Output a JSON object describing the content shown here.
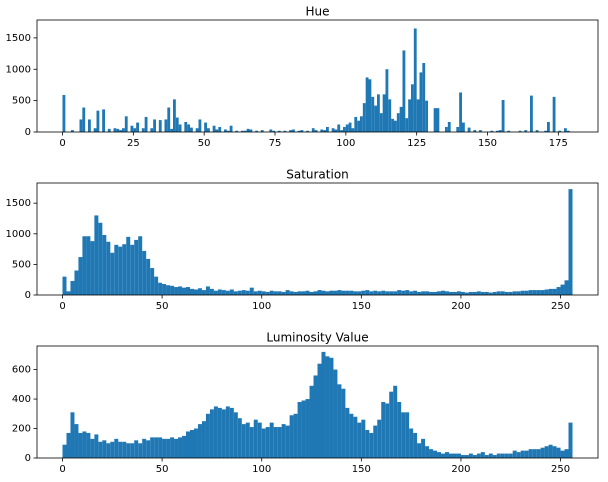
{
  "chart_data": [
    {
      "type": "histogram",
      "title": "Hue",
      "color": "#1f77b4",
      "bins": [
        0,
        1,
        2,
        3,
        4,
        5,
        6,
        7,
        8,
        9,
        10,
        11,
        12,
        13,
        14,
        15,
        16,
        17,
        18,
        19,
        20,
        21,
        22,
        23,
        24,
        25,
        26,
        27,
        28,
        29,
        30,
        31,
        32,
        33,
        34,
        35,
        36,
        37,
        38,
        39,
        40,
        41,
        42,
        43,
        44,
        45,
        46,
        47,
        48,
        49,
        50,
        51,
        52,
        53,
        54,
        55,
        56,
        57,
        58,
        59,
        60,
        61,
        62,
        63,
        64,
        65,
        66,
        67,
        68,
        69,
        70,
        71,
        72,
        73,
        74,
        75,
        76,
        77,
        78,
        79,
        80,
        81,
        82,
        83,
        84,
        85,
        86,
        87,
        88,
        89,
        90,
        91,
        92,
        93,
        94,
        95,
        96,
        97,
        98,
        99,
        100,
        101,
        102,
        103,
        104,
        105,
        106,
        107,
        108,
        109,
        110,
        111,
        112,
        113,
        114,
        115,
        116,
        117,
        118,
        119,
        120,
        121,
        122,
        123,
        124,
        125,
        126,
        127,
        128,
        129,
        130,
        131,
        132,
        133,
        134,
        135,
        136,
        137,
        138,
        139,
        140,
        141,
        142,
        143,
        144,
        145,
        146,
        147,
        148,
        149,
        150,
        151,
        152,
        153,
        154,
        155,
        156,
        157,
        158,
        159,
        160,
        161,
        162,
        163,
        164,
        165,
        166,
        167,
        168,
        169,
        170,
        171,
        172,
        173,
        174,
        175,
        176,
        177,
        178,
        179,
        180
      ],
      "values": [
        590,
        0,
        0,
        30,
        0,
        0,
        200,
        390,
        0,
        200,
        0,
        60,
        340,
        0,
        360,
        0,
        50,
        0,
        60,
        50,
        30,
        60,
        250,
        0,
        100,
        60,
        150,
        0,
        60,
        240,
        0,
        60,
        200,
        0,
        190,
        0,
        200,
        390,
        50,
        520,
        230,
        120,
        0,
        160,
        120,
        70,
        0,
        60,
        200,
        0,
        150,
        60,
        0,
        100,
        40,
        80,
        0,
        40,
        20,
        100,
        0,
        20,
        0,
        20,
        20,
        50,
        40,
        0,
        20,
        0,
        30,
        0,
        0,
        40,
        20,
        0,
        20,
        0,
        20,
        0,
        30,
        40,
        0,
        20,
        30,
        0,
        20,
        0,
        60,
        30,
        0,
        40,
        30,
        80,
        0,
        60,
        40,
        120,
        30,
        80,
        120,
        150,
        60,
        240,
        180,
        250,
        460,
        870,
        840,
        560,
        420,
        600,
        300,
        600,
        1000,
        520,
        210,
        180,
        300,
        400,
        1300,
        220,
        520,
        760,
        1650,
        520,
        950,
        1100,
        500,
        0,
        0,
        380,
        380,
        0,
        0,
        80,
        160,
        0,
        0,
        80,
        630,
        150,
        0,
        70,
        0,
        30,
        0,
        30,
        0,
        0,
        0,
        20,
        0,
        20,
        30,
        510,
        0,
        20,
        0,
        0,
        0,
        20,
        0,
        30,
        0,
        580,
        0,
        30,
        0,
        0,
        20,
        160,
        0,
        560,
        0,
        20,
        0,
        60,
        20,
        0
      ],
      "xlim": [
        -9,
        189
      ],
      "xticks": [
        0,
        25,
        50,
        75,
        100,
        125,
        150,
        175
      ],
      "ylim": [
        0,
        1785
      ],
      "yticks": [
        0,
        500,
        1000,
        1500
      ]
    },
    {
      "type": "histogram",
      "title": "Saturation",
      "color": "#1f77b4",
      "bins": [
        0,
        2,
        4,
        6,
        8,
        10,
        12,
        14,
        16,
        18,
        20,
        22,
        24,
        26,
        28,
        30,
        32,
        34,
        36,
        38,
        40,
        42,
        44,
        46,
        48,
        50,
        52,
        54,
        56,
        58,
        60,
        62,
        64,
        66,
        68,
        70,
        72,
        74,
        76,
        78,
        80,
        82,
        84,
        86,
        88,
        90,
        92,
        94,
        96,
        98,
        100,
        102,
        104,
        106,
        108,
        110,
        112,
        114,
        116,
        118,
        120,
        122,
        124,
        126,
        128,
        130,
        132,
        134,
        136,
        138,
        140,
        142,
        144,
        146,
        148,
        150,
        152,
        154,
        156,
        158,
        160,
        162,
        164,
        166,
        168,
        170,
        172,
        174,
        176,
        178,
        180,
        182,
        184,
        186,
        188,
        190,
        192,
        194,
        196,
        198,
        200,
        202,
        204,
        206,
        208,
        210,
        212,
        214,
        216,
        218,
        220,
        222,
        224,
        226,
        228,
        230,
        232,
        234,
        236,
        238,
        240,
        242,
        244,
        246,
        248,
        250,
        252,
        254,
        256
      ],
      "values": [
        300,
        60,
        230,
        400,
        620,
        960,
        960,
        880,
        1300,
        1180,
        980,
        870,
        690,
        820,
        790,
        830,
        950,
        820,
        900,
        960,
        720,
        590,
        440,
        300,
        200,
        180,
        160,
        150,
        130,
        140,
        120,
        130,
        100,
        90,
        110,
        80,
        140,
        100,
        70,
        90,
        80,
        70,
        90,
        60,
        70,
        80,
        70,
        120,
        60,
        70,
        60,
        50,
        70,
        60,
        60,
        50,
        80,
        60,
        50,
        60,
        60,
        70,
        50,
        60,
        80,
        70,
        60,
        70,
        70,
        80,
        70,
        70,
        70,
        60,
        60,
        70,
        80,
        60,
        70,
        60,
        70,
        60,
        60,
        60,
        80,
        70,
        80,
        60,
        70,
        50,
        60,
        60,
        50,
        50,
        60,
        70,
        60,
        50,
        50,
        60,
        50,
        40,
        50,
        50,
        60,
        50,
        50,
        40,
        50,
        60,
        60,
        50,
        50,
        60,
        60,
        70,
        70,
        80,
        80,
        80,
        80,
        90,
        100,
        100,
        130,
        170,
        240,
        1730
      ],
      "xlim": [
        -12.8,
        268.8
      ],
      "xticks": [
        0,
        50,
        100,
        150,
        200,
        250
      ],
      "ylim": [
        0,
        1830
      ],
      "yticks": [
        0,
        500,
        1000,
        1500
      ]
    },
    {
      "type": "histogram",
      "title": "Luminosity Value",
      "color": "#1f77b4",
      "bins": [
        0,
        2,
        4,
        6,
        8,
        10,
        12,
        14,
        16,
        18,
        20,
        22,
        24,
        26,
        28,
        30,
        32,
        34,
        36,
        38,
        40,
        42,
        44,
        46,
        48,
        50,
        52,
        54,
        56,
        58,
        60,
        62,
        64,
        66,
        68,
        70,
        72,
        74,
        76,
        78,
        80,
        82,
        84,
        86,
        88,
        90,
        92,
        94,
        96,
        98,
        100,
        102,
        104,
        106,
        108,
        110,
        112,
        114,
        116,
        118,
        120,
        122,
        124,
        126,
        128,
        130,
        132,
        134,
        136,
        138,
        140,
        142,
        144,
        146,
        148,
        150,
        152,
        154,
        156,
        158,
        160,
        162,
        164,
        166,
        168,
        170,
        172,
        174,
        176,
        178,
        180,
        182,
        184,
        186,
        188,
        190,
        192,
        194,
        196,
        198,
        200,
        202,
        204,
        206,
        208,
        210,
        212,
        214,
        216,
        218,
        220,
        222,
        224,
        226,
        228,
        230,
        232,
        234,
        236,
        238,
        240,
        242,
        244,
        246,
        248,
        250,
        252,
        254,
        256
      ],
      "values": [
        90,
        170,
        310,
        230,
        170,
        180,
        170,
        130,
        160,
        110,
        120,
        100,
        110,
        130,
        110,
        110,
        100,
        100,
        120,
        100,
        130,
        120,
        140,
        140,
        140,
        130,
        130,
        140,
        130,
        140,
        150,
        180,
        190,
        200,
        230,
        250,
        300,
        330,
        350,
        340,
        330,
        350,
        340,
        310,
        270,
        230,
        240,
        210,
        260,
        240,
        200,
        210,
        240,
        210,
        210,
        230,
        220,
        290,
        300,
        380,
        390,
        400,
        490,
        560,
        640,
        720,
        690,
        680,
        600,
        500,
        470,
        340,
        300,
        280,
        240,
        260,
        190,
        170,
        220,
        260,
        380,
        370,
        450,
        490,
        380,
        310,
        310,
        200,
        170,
        100,
        130,
        80,
        60,
        50,
        40,
        30,
        40,
        30,
        30,
        30,
        20,
        20,
        30,
        20,
        30,
        40,
        20,
        30,
        20,
        30,
        30,
        30,
        30,
        50,
        40,
        50,
        50,
        60,
        60,
        60,
        70,
        80,
        90,
        80,
        70,
        50,
        60,
        240
      ],
      "xlim": [
        -12.8,
        268.8
      ],
      "xticks": [
        0,
        50,
        100,
        150,
        200,
        250
      ],
      "ylim": [
        0,
        760
      ],
      "yticks": [
        0,
        200,
        400,
        600
      ]
    }
  ]
}
